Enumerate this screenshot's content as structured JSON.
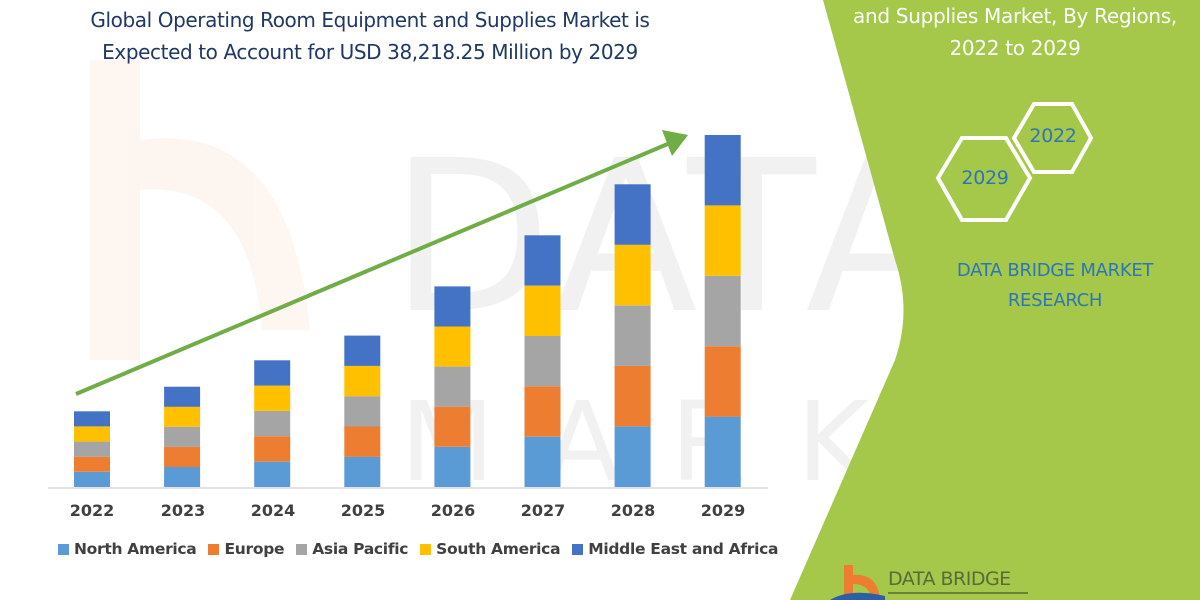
{
  "title": {
    "line1": "Global Operating Room Equipment and Supplies Market is",
    "line2": "Expected to Account for USD 38,218.25 Million by 2029"
  },
  "side_panel": {
    "title_line1": "and Supplies Market, By Regions,",
    "title_line2": "2022 to 2029",
    "hex_years": [
      "2022",
      "2029"
    ],
    "brand_line1": "DATA BRIDGE MARKET",
    "brand_line2": "RESEARCH",
    "logo_text": "DATA BRIDGE",
    "background_color": "#a5c84a"
  },
  "colors": {
    "north_america": "#5b9bd5",
    "europe": "#ed7d31",
    "asia_pacific": "#a5a5a5",
    "south_america": "#ffc000",
    "middle_east_africa": "#4472c4",
    "trend_arrow": "#70ad47",
    "title_text": "#1f3864",
    "brand_text": "#2e75b6"
  },
  "legend": [
    {
      "label": "North America",
      "color": "#5b9bd5"
    },
    {
      "label": "Europe",
      "color": "#ed7d31"
    },
    {
      "label": "Asia Pacific",
      "color": "#a5a5a5"
    },
    {
      "label": "South America",
      "color": "#ffc000"
    },
    {
      "label": "Middle East and Africa",
      "color": "#4472c4"
    }
  ],
  "chart_data": {
    "type": "bar",
    "stacked": true,
    "title": "Global Operating Room Equipment and Supplies Market is Expected to Account for USD 38,218.25 Million by 2029",
    "xlabel": "",
    "ylabel": "",
    "categories": [
      "2022",
      "2023",
      "2024",
      "2025",
      "2026",
      "2027",
      "2028",
      "2029"
    ],
    "units": "relative bar height (no y-axis shown; 2029 total scaled to 100)",
    "series": [
      {
        "name": "North America",
        "values": [
          4.3,
          5.7,
          7.2,
          8.6,
          11.4,
          14.3,
          17.2,
          20.0
        ]
      },
      {
        "name": "Europe",
        "values": [
          4.3,
          5.7,
          7.2,
          8.6,
          11.4,
          14.3,
          17.2,
          20.0
        ]
      },
      {
        "name": "Asia Pacific",
        "values": [
          4.3,
          5.7,
          7.2,
          8.6,
          11.4,
          14.3,
          17.2,
          20.0
        ]
      },
      {
        "name": "South America",
        "values": [
          4.3,
          5.7,
          7.2,
          8.6,
          11.4,
          14.3,
          17.2,
          20.0
        ]
      },
      {
        "name": "Middle East and Africa",
        "values": [
          4.3,
          5.7,
          7.2,
          8.6,
          11.4,
          14.3,
          17.2,
          20.0
        ]
      }
    ],
    "totals": [
      21.6,
      28.7,
      35.8,
      42.9,
      57.1,
      71.6,
      85.8,
      100.0
    ],
    "annotations": [
      "Upward green trend arrow from 2022 to 2029"
    ],
    "grid": false,
    "legend_position": "bottom"
  }
}
